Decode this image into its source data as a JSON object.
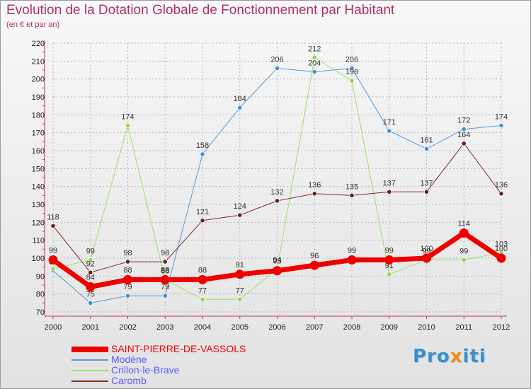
{
  "title": "Evolution de la Dotation Globale de Fonctionnement par Habitant",
  "subtitle": "(en € et par an)",
  "brand": "Proxiti",
  "colors": {
    "title": "#b0306c",
    "grid": "#b5b5b5"
  },
  "chart_data": {
    "type": "line",
    "title": "Evolution de la Dotation Globale de Fonctionnement par Habitant",
    "subtitle": "(en € et par an)",
    "xlabel": "",
    "ylabel": "",
    "ylim": [
      70,
      220
    ],
    "yticks": [
      70,
      80,
      90,
      100,
      110,
      120,
      130,
      140,
      150,
      160,
      170,
      180,
      190,
      200,
      210,
      220
    ],
    "categories": [
      "2000",
      "2001",
      "2002",
      "2003",
      "2004",
      "2005",
      "2006",
      "2007",
      "2008",
      "2009",
      "2010",
      "2011",
      "2012"
    ],
    "legend_position": "bottom-left",
    "series": [
      {
        "name": "SAINT-PIERRE-DE-VASSOLS",
        "color": "#ee0000",
        "line_color": "#ee0000",
        "marker_fill": "#ee0000",
        "width": 7,
        "label_color": "#444444",
        "label_dy": -10,
        "values": [
          99,
          84,
          88,
          88,
          88,
          91,
          93,
          96,
          99,
          99,
          100,
          114,
          100
        ]
      },
      {
        "name": "Modène",
        "color": "#5b5bff",
        "line_color": "#5a9ad5",
        "marker_fill": "#3f8fd8",
        "width": 1,
        "label_color": "#444444",
        "label_dy": -9,
        "values": [
          93,
          75,
          79,
          79,
          158,
          184,
          206,
          204,
          206,
          171,
          161,
          172,
          174
        ]
      },
      {
        "name": "Crillon-le-Brave",
        "color": "#5b5bff",
        "line_color": "#9ee06a",
        "marker_fill": "#8cd84f",
        "width": 1,
        "label_color": "#444444",
        "label_dy": -9,
        "values": [
          94,
          99,
          174,
          88,
          77,
          77,
          94,
          212,
          199,
          91,
          99,
          99,
          103
        ]
      },
      {
        "name": "Caromb",
        "color": "#5b5bff",
        "line_color": "#7a2b2b",
        "marker_fill": "#6b1f1f",
        "width": 1,
        "label_color": "#444444",
        "label_dy": -9,
        "values": [
          118,
          92,
          98,
          98,
          121,
          124,
          132,
          136,
          135,
          137,
          137,
          164,
          136
        ]
      }
    ]
  }
}
